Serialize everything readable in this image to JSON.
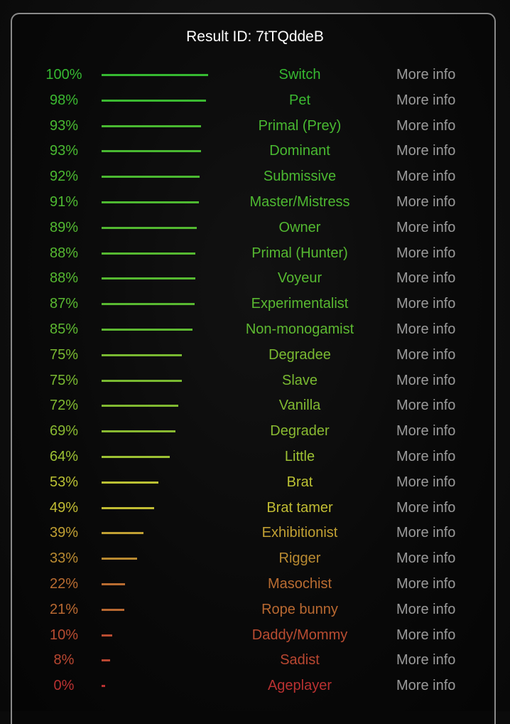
{
  "title": "Result ID: 7tTQddeB",
  "more_info_label": "More info",
  "results": [
    {
      "pct": 100,
      "label": "100%",
      "name": "Switch"
    },
    {
      "pct": 98,
      "label": "98%",
      "name": "Pet"
    },
    {
      "pct": 93,
      "label": "93%",
      "name": "Primal (Prey)"
    },
    {
      "pct": 93,
      "label": "93%",
      "name": "Dominant"
    },
    {
      "pct": 92,
      "label": "92%",
      "name": "Submissive"
    },
    {
      "pct": 91,
      "label": "91%",
      "name": "Master/Mistress"
    },
    {
      "pct": 89,
      "label": "89%",
      "name": "Owner"
    },
    {
      "pct": 88,
      "label": "88%",
      "name": "Primal (Hunter)"
    },
    {
      "pct": 88,
      "label": "88%",
      "name": "Voyeur"
    },
    {
      "pct": 87,
      "label": "87%",
      "name": "Experimentalist"
    },
    {
      "pct": 85,
      "label": "85%",
      "name": "Non-monogamist"
    },
    {
      "pct": 75,
      "label": "75%",
      "name": "Degradee"
    },
    {
      "pct": 75,
      "label": "75%",
      "name": "Slave"
    },
    {
      "pct": 72,
      "label": "72%",
      "name": "Vanilla"
    },
    {
      "pct": 69,
      "label": "69%",
      "name": "Degrader"
    },
    {
      "pct": 64,
      "label": "64%",
      "name": "Little"
    },
    {
      "pct": 53,
      "label": "53%",
      "name": "Brat"
    },
    {
      "pct": 49,
      "label": "49%",
      "name": "Brat tamer"
    },
    {
      "pct": 39,
      "label": "39%",
      "name": "Exhibitionist"
    },
    {
      "pct": 33,
      "label": "33%",
      "name": "Rigger"
    },
    {
      "pct": 22,
      "label": "22%",
      "name": "Masochist"
    },
    {
      "pct": 21,
      "label": "21%",
      "name": "Rope bunny"
    },
    {
      "pct": 10,
      "label": "10%",
      "name": "Daddy/Mommy"
    },
    {
      "pct": 8,
      "label": "8%",
      "name": "Sadist"
    },
    {
      "pct": 0,
      "label": "0%",
      "name": "Ageplayer"
    }
  ]
}
